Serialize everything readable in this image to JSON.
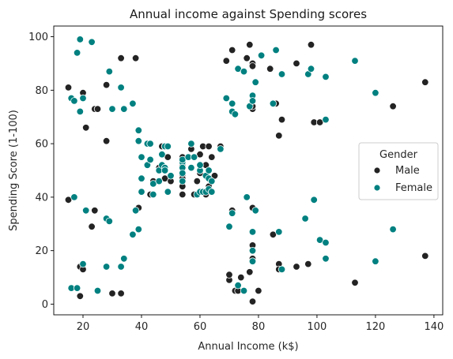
{
  "chart_data": {
    "type": "scatter",
    "title": "Annual income against Spending scores",
    "xlabel": "Annual Income (k$)",
    "ylabel": "Spending Score (1-100)",
    "xlim": [
      10,
      143
    ],
    "ylim": [
      -4,
      104
    ],
    "xticks": [
      20,
      40,
      60,
      80,
      100,
      120,
      140
    ],
    "yticks": [
      0,
      20,
      40,
      60,
      80,
      100
    ],
    "grid": false,
    "legend": {
      "title": "Gender",
      "placement": "center-right"
    },
    "series": [
      {
        "name": "Male",
        "color": "#232323",
        "points": [
          [
            15,
            39
          ],
          [
            15,
            81
          ],
          [
            19,
            3
          ],
          [
            19,
            14
          ],
          [
            20,
            13
          ],
          [
            20,
            79
          ],
          [
            21,
            66
          ],
          [
            23,
            29
          ],
          [
            24,
            35
          ],
          [
            24,
            73
          ],
          [
            25,
            73
          ],
          [
            28,
            82
          ],
          [
            28,
            61
          ],
          [
            30,
            4
          ],
          [
            33,
            4
          ],
          [
            33,
            92
          ],
          [
            38,
            92
          ],
          [
            39,
            36
          ],
          [
            42,
            60
          ],
          [
            43,
            60
          ],
          [
            43,
            41
          ],
          [
            44,
            46
          ],
          [
            46,
            51
          ],
          [
            47,
            59
          ],
          [
            48,
            47
          ],
          [
            48,
            59
          ],
          [
            49,
            55
          ],
          [
            50,
            46
          ],
          [
            54,
            41
          ],
          [
            54,
            44
          ],
          [
            54,
            48
          ],
          [
            54,
            52
          ],
          [
            54,
            55
          ],
          [
            54,
            47
          ],
          [
            57,
            58
          ],
          [
            58,
            41
          ],
          [
            59,
            46
          ],
          [
            60,
            49
          ],
          [
            60,
            56
          ],
          [
            61,
            59
          ],
          [
            61,
            42
          ],
          [
            62,
            41
          ],
          [
            62,
            52
          ],
          [
            63,
            59
          ],
          [
            63,
            44
          ],
          [
            64,
            55
          ],
          [
            65,
            48
          ],
          [
            67,
            59
          ],
          [
            69,
            91
          ],
          [
            70,
            9
          ],
          [
            70,
            11
          ],
          [
            71,
            35
          ],
          [
            71,
            95
          ],
          [
            72,
            5
          ],
          [
            73,
            5
          ],
          [
            73,
            88
          ],
          [
            74,
            10
          ],
          [
            76,
            92
          ],
          [
            77,
            97
          ],
          [
            77,
            12
          ],
          [
            78,
            1
          ],
          [
            78,
            36
          ],
          [
            78,
            90
          ],
          [
            78,
            89
          ],
          [
            78,
            73
          ],
          [
            78,
            74
          ],
          [
            78,
            17
          ],
          [
            78,
            16
          ],
          [
            78,
            22
          ],
          [
            80,
            5
          ],
          [
            84,
            88
          ],
          [
            85,
            26
          ],
          [
            86,
            75
          ],
          [
            87,
            15
          ],
          [
            87,
            13
          ],
          [
            87,
            63
          ],
          [
            88,
            69
          ],
          [
            93,
            14
          ],
          [
            93,
            90
          ],
          [
            97,
            15
          ],
          [
            98,
            97
          ],
          [
            99,
            68
          ],
          [
            101,
            68
          ],
          [
            113,
            8
          ],
          [
            126,
            74
          ],
          [
            137,
            18
          ],
          [
            137,
            83
          ]
        ]
      },
      {
        "name": "Female",
        "color": "#008080",
        "points": [
          [
            16,
            6
          ],
          [
            16,
            77
          ],
          [
            17,
            40
          ],
          [
            17,
            76
          ],
          [
            18,
            6
          ],
          [
            18,
            94
          ],
          [
            19,
            72
          ],
          [
            19,
            99
          ],
          [
            20,
            15
          ],
          [
            20,
            77
          ],
          [
            21,
            35
          ],
          [
            23,
            98
          ],
          [
            25,
            5
          ],
          [
            28,
            14
          ],
          [
            28,
            32
          ],
          [
            29,
            31
          ],
          [
            29,
            87
          ],
          [
            30,
            73
          ],
          [
            33,
            14
          ],
          [
            33,
            81
          ],
          [
            34,
            17
          ],
          [
            34,
            73
          ],
          [
            37,
            26
          ],
          [
            37,
            75
          ],
          [
            38,
            35
          ],
          [
            39,
            28
          ],
          [
            39,
            61
          ],
          [
            39,
            65
          ],
          [
            40,
            55
          ],
          [
            40,
            47
          ],
          [
            40,
            42
          ],
          [
            40,
            42
          ],
          [
            42,
            52
          ],
          [
            42,
            60
          ],
          [
            43,
            54
          ],
          [
            43,
            60
          ],
          [
            44,
            45
          ],
          [
            44,
            41
          ],
          [
            46,
            50
          ],
          [
            46,
            46
          ],
          [
            47,
            56
          ],
          [
            47,
            52
          ],
          [
            48,
            59
          ],
          [
            48,
            51
          ],
          [
            48,
            50
          ],
          [
            49,
            42
          ],
          [
            49,
            59
          ],
          [
            50,
            48
          ],
          [
            54,
            53
          ],
          [
            54,
            51
          ],
          [
            54,
            46
          ],
          [
            54,
            49
          ],
          [
            54,
            54
          ],
          [
            56,
            55
          ],
          [
            57,
            60
          ],
          [
            57,
            51
          ],
          [
            58,
            55
          ],
          [
            59,
            41
          ],
          [
            60,
            42
          ],
          [
            60,
            50
          ],
          [
            60,
            52
          ],
          [
            61,
            42
          ],
          [
            62,
            42
          ],
          [
            62,
            48
          ],
          [
            63,
            50
          ],
          [
            63,
            43
          ],
          [
            63,
            47
          ],
          [
            64,
            46
          ],
          [
            64,
            42
          ],
          [
            67,
            58
          ],
          [
            69,
            77
          ],
          [
            70,
            29
          ],
          [
            71,
            72
          ],
          [
            71,
            75
          ],
          [
            71,
            34
          ],
          [
            72,
            71
          ],
          [
            73,
            7
          ],
          [
            73,
            88
          ],
          [
            75,
            5
          ],
          [
            75,
            87
          ],
          [
            76,
            40
          ],
          [
            77,
            74
          ],
          [
            78,
            78
          ],
          [
            78,
            20
          ],
          [
            78,
            76
          ],
          [
            78,
            16
          ],
          [
            78,
            27
          ],
          [
            79,
            35
          ],
          [
            79,
            83
          ],
          [
            81,
            93
          ],
          [
            85,
            75
          ],
          [
            86,
            95
          ],
          [
            87,
            27
          ],
          [
            88,
            13
          ],
          [
            88,
            86
          ],
          [
            96,
            32
          ],
          [
            97,
            86
          ],
          [
            98,
            88
          ],
          [
            99,
            39
          ],
          [
            101,
            24
          ],
          [
            103,
            17
          ],
          [
            103,
            23
          ],
          [
            103,
            85
          ],
          [
            103,
            69
          ],
          [
            113,
            91
          ],
          [
            120,
            79
          ],
          [
            120,
            16
          ],
          [
            126,
            28
          ]
        ]
      }
    ]
  }
}
